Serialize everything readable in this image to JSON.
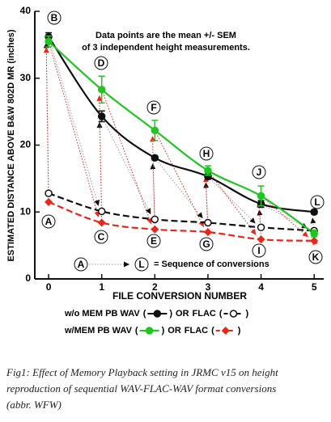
{
  "chart_data": {
    "type": "line",
    "y_label": "ESTIMATED DISTANCE ABOVE B&W 802D MR (inches)",
    "x_label": "FILE CONVERSION NUMBER",
    "annotations": [
      "Data points are the mean +/- SEM",
      "of 3 independent height measurements."
    ],
    "sequence_letters": [
      "A",
      "B",
      "C",
      "D",
      "E",
      "F",
      "G",
      "H",
      "I",
      "J",
      "K",
      "L"
    ],
    "sequence_note": "= Sequence of conversions",
    "legend_open": "(",
    "legend_close": ")",
    "legend_joiner": "OR",
    "x": [
      0,
      1,
      2,
      3,
      4,
      5
    ],
    "xlim": [
      -0.26,
      5.18
    ],
    "xticks": [
      0,
      1,
      2,
      3,
      4,
      5
    ],
    "ylim": [
      0,
      40
    ],
    "yticks": [
      0,
      10,
      20,
      30,
      40
    ],
    "series": [
      {
        "name": "w/o MEM PB WAV",
        "color": "#111111",
        "dash": false,
        "marker": "filled-circle",
        "values": [
          36.2,
          24.3,
          18.1,
          15.3,
          11.2,
          10.0
        ],
        "errors": [
          0.6,
          0.8,
          0.3,
          0.4,
          0.5,
          0.3
        ]
      },
      {
        "name": "FLAC",
        "color": "#111111",
        "dash": true,
        "marker": "open-circle",
        "values": [
          12.8,
          10.1,
          8.9,
          8.4,
          7.7,
          7.2
        ]
      },
      {
        "name": "w/MEM PB WAV",
        "color": "#22c422",
        "dash": false,
        "marker": "filled-circle",
        "values": [
          35.5,
          28.3,
          22.2,
          16.2,
          12.4,
          6.8
        ],
        "errors": [
          0.8,
          2.0,
          1.5,
          0.7,
          1.5,
          0.5
        ]
      },
      {
        "name": "FLAC",
        "color": "#e8261a",
        "dash": true,
        "marker": "diamond",
        "values": [
          11.5,
          8.4,
          7.4,
          7.0,
          5.9,
          5.7
        ]
      }
    ]
  }
}
